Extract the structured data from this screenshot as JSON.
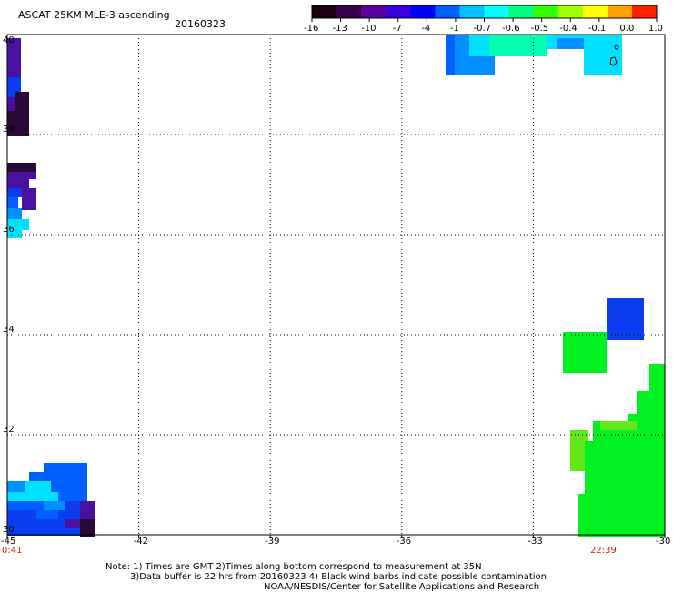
{
  "header": {
    "title": "ASCAT 25KM MLE-3 ascending",
    "date": "20160323"
  },
  "colorbar": {
    "labels": [
      "-16",
      "-13",
      "-10",
      "-7",
      "-4",
      "-1",
      "-0.7",
      "-0.6",
      "-0.5",
      "-0.4",
      "-0.1",
      "0.0",
      "1.0"
    ],
    "colors": [
      "#1a0010",
      "#3a0050",
      "#5a00a0",
      "#3800e0",
      "#0000ff",
      "#0060ff",
      "#00c0ff",
      "#00ffff",
      "#00ff80",
      "#30ff00",
      "#a0ff00",
      "#ffff00",
      "#ffa000",
      "#ff2000"
    ]
  },
  "map": {
    "lon_labels": [
      "-45",
      "-42",
      "-39",
      "-36",
      "-33",
      "-30"
    ],
    "lat_labels": [
      "40",
      "38",
      "36",
      "34",
      "32",
      "30"
    ],
    "lon_range": [
      -45,
      -30
    ],
    "lat_range": [
      30,
      40
    ],
    "time_left": "0:41",
    "time_right": "22:39",
    "pixel_colors": {
      "dark_purple": "#2a0838",
      "purple": "#4a10a0",
      "blue": "#0a3cf0",
      "mid_blue": "#0060ff",
      "light_blue": "#0090ff",
      "cyan": "#00e0ff",
      "aqua_green": "#00ffb0",
      "green": "#00f020",
      "lime": "#60e818"
    }
  },
  "footer": {
    "line1": "Note: 1) Times are GMT 2)Times along bottom correspond to measurement at 35N",
    "line2": "3)Data buffer is 22 hrs from 20160323 4) Black wind barbs indicate possible contamination",
    "line3": "NOAA/NESDIS/Center for Satellite Applications and Research"
  }
}
